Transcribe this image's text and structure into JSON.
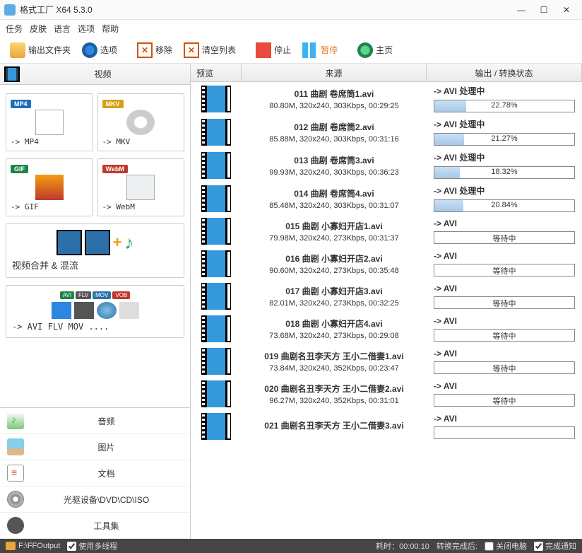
{
  "titlebar": {
    "title": "格式工厂 X64 5.3.0"
  },
  "menubar": [
    "任务",
    "皮肤",
    "语言",
    "选项",
    "帮助"
  ],
  "toolbar": {
    "outputFolder": "输出文件夹",
    "options": "选项",
    "remove": "移除",
    "clear": "清空列表",
    "stop": "停止",
    "pause": "暂停",
    "home": "主页"
  },
  "sidebar": {
    "videoHeader": "视频",
    "mp4": "-> MP4",
    "mkv": "-> MKV",
    "gif": "-> GIF",
    "webm": "-> WebM",
    "merge": "视频合并 & 混流",
    "multi": "-> AVI FLV MOV ....",
    "bottom": {
      "audio": "音频",
      "pic": "图片",
      "doc": "文档",
      "disc": "光驱设备\\DVD\\CD\\ISO",
      "tools": "工具集"
    }
  },
  "table": {
    "headers": {
      "preview": "预览",
      "source": "来源",
      "status": "输出 / 转换状态"
    },
    "rows": [
      {
        "name": "011 曲剧 卷席筒1.avi",
        "meta": "80.80M, 320x240, 303Kbps, 00:29:25",
        "status": "-> AVI 处理中",
        "progress": 22.78,
        "text": "22.78%"
      },
      {
        "name": "012 曲剧 卷席筒2.avi",
        "meta": "85.88M, 320x240, 303Kbps, 00:31:16",
        "status": "-> AVI 处理中",
        "progress": 21.27,
        "text": "21.27%"
      },
      {
        "name": "013 曲剧 卷席筒3.avi",
        "meta": "99.93M, 320x240, 303Kbps, 00:36:23",
        "status": "-> AVI 处理中",
        "progress": 18.32,
        "text": "18.32%"
      },
      {
        "name": "014 曲剧 卷席筒4.avi",
        "meta": "85.46M, 320x240, 303Kbps, 00:31:07",
        "status": "-> AVI 处理中",
        "progress": 20.84,
        "text": "20.84%"
      },
      {
        "name": "015 曲剧 小寡妇开店1.avi",
        "meta": "79.98M, 320x240, 273Kbps, 00:31:37",
        "status": "-> AVI",
        "progress": 0,
        "text": "等待中"
      },
      {
        "name": "016 曲剧 小寡妇开店2.avi",
        "meta": "90.60M, 320x240, 273Kbps, 00:35:48",
        "status": "-> AVI",
        "progress": 0,
        "text": "等待中"
      },
      {
        "name": "017 曲剧 小寡妇开店3.avi",
        "meta": "82.01M, 320x240, 273Kbps, 00:32:25",
        "status": "-> AVI",
        "progress": 0,
        "text": "等待中"
      },
      {
        "name": "018 曲剧 小寡妇开店4.avi",
        "meta": "73.68M, 320x240, 273Kbps, 00:29:08",
        "status": "-> AVI",
        "progress": 0,
        "text": "等待中"
      },
      {
        "name": "019 曲剧名丑李天方 王小二借妻1.avi",
        "meta": "73.84M, 320x240, 352Kbps, 00:23:47",
        "status": "-> AVI",
        "progress": 0,
        "text": "等待中"
      },
      {
        "name": "020 曲剧名丑李天方 王小二借妻2.avi",
        "meta": "96.27M, 320x240, 352Kbps, 00:31:01",
        "status": "-> AVI",
        "progress": 0,
        "text": "等待中"
      },
      {
        "name": "021 曲剧名丑李天方 王小二借妻3.avi",
        "meta": "",
        "status": "-> AVI",
        "progress": 0,
        "text": ""
      }
    ]
  },
  "statusbar": {
    "path": "F:\\FFOutput",
    "multithread": "使用多线程",
    "elapsed_label": "耗时：",
    "elapsed_value": "00:00:10",
    "after_label": "转换完成后:",
    "shutdown": "关闭电脑",
    "notify": "完成通知"
  }
}
